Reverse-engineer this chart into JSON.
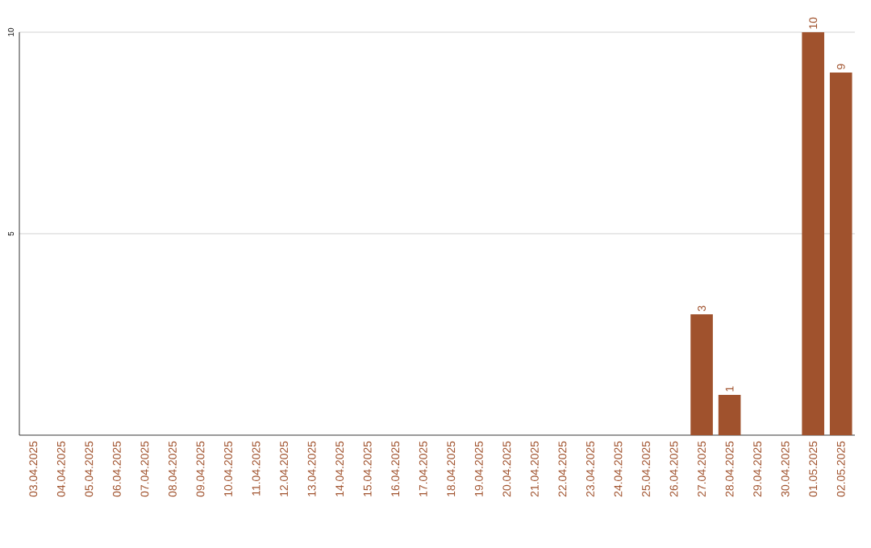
{
  "chart_data": {
    "type": "bar",
    "categories": [
      "03.04.2025",
      "04.04.2025",
      "05.04.2025",
      "06.04.2025",
      "07.04.2025",
      "08.04.2025",
      "09.04.2025",
      "10.04.2025",
      "11.04.2025",
      "12.04.2025",
      "13.04.2025",
      "14.04.2025",
      "15.04.2025",
      "16.04.2025",
      "17.04.2025",
      "18.04.2025",
      "19.04.2025",
      "20.04.2025",
      "21.04.2025",
      "22.04.2025",
      "23.04.2025",
      "24.04.2025",
      "25.04.2025",
      "26.04.2025",
      "27.04.2025",
      "28.04.2025",
      "29.04.2025",
      "30.04.2025",
      "01.05.2025",
      "02.05.2025"
    ],
    "values": [
      0,
      0,
      0,
      0,
      0,
      0,
      0,
      0,
      0,
      0,
      0,
      0,
      0,
      0,
      0,
      0,
      0,
      0,
      0,
      0,
      0,
      0,
      0,
      0,
      3,
      1,
      0,
      0,
      10,
      9
    ],
    "value_labels": [
      null,
      null,
      null,
      null,
      null,
      null,
      null,
      null,
      null,
      null,
      null,
      null,
      null,
      null,
      null,
      null,
      null,
      null,
      null,
      null,
      null,
      null,
      null,
      null,
      "3",
      "1",
      null,
      null,
      "10",
      "9"
    ],
    "color": "#a0522d",
    "ylim": [
      0,
      10
    ],
    "yticks": [
      5,
      10
    ],
    "grid": "y"
  }
}
